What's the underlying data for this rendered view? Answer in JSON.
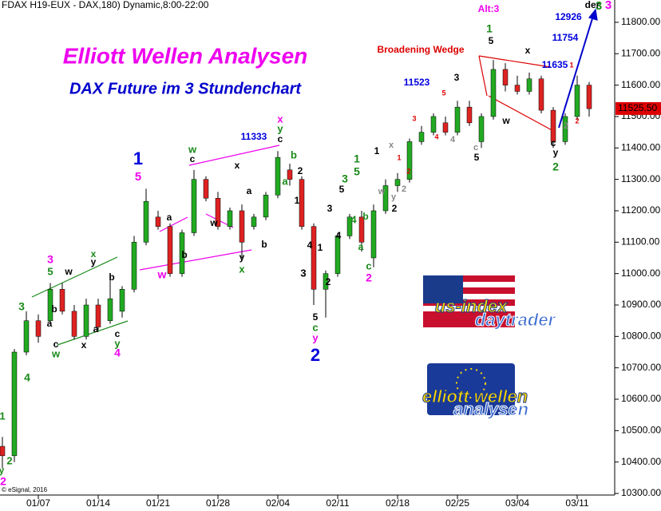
{
  "chart_data": {
    "type": "candlestick",
    "header": "FDAX H19-EUX - DAX,180) Dynamic,8:00-22:00",
    "copyright": "© eSignal, 2016",
    "title": "Elliott Wellen Analysen",
    "subtitle": "DAX Future im 3 Stundenchart",
    "categories": [
      null,
      null,
      null,
      "01/07",
      null,
      null,
      null,
      null,
      "01/14",
      null,
      null,
      null,
      null,
      "01/21",
      null,
      null,
      null,
      null,
      "01/28",
      null,
      null,
      null,
      null,
      "02/04",
      null,
      null,
      null,
      null,
      "02/11",
      null,
      null,
      null,
      null,
      "02/18",
      null,
      null,
      null,
      null,
      "02/25",
      null,
      null,
      null,
      null,
      "03/04",
      null,
      null,
      null,
      null,
      "03/11",
      null
    ],
    "open": [
      10450,
      10420,
      10750,
      10850,
      10850,
      10950,
      10880,
      10800,
      10900,
      10850,
      10880,
      10950,
      11100,
      11180,
      11150,
      11000,
      11130,
      11300,
      11240,
      11150,
      11200,
      11150,
      11180,
      11250,
      11330,
      11300,
      11150,
      10950,
      11000,
      11120,
      11180,
      11050,
      11200,
      11280,
      11300,
      11420,
      11450,
      11480,
      11450,
      11530,
      11420,
      11500,
      11650,
      11600,
      11580,
      11620,
      11520,
      11420,
      11500,
      11600
    ],
    "high": [
      10480,
      10760,
      10880,
      10870,
      10970,
      10970,
      10900,
      10920,
      10920,
      10990,
      10960,
      11120,
      11270,
      11200,
      11160,
      11140,
      11330,
      11310,
      11260,
      11210,
      11220,
      11190,
      11260,
      11390,
      11350,
      11310,
      11160,
      11010,
      11130,
      11190,
      11200,
      11220,
      11300,
      11320,
      11430,
      11470,
      11510,
      11500,
      11550,
      11550,
      11510,
      11680,
      11670,
      11630,
      11640,
      11630,
      11530,
      11510,
      11630,
      11610
    ],
    "low": [
      10380,
      10400,
      10740,
      10780,
      10840,
      10870,
      10790,
      10790,
      10820,
      10840,
      10860,
      10940,
      11090,
      11140,
      10990,
      10990,
      11120,
      11230,
      11140,
      11140,
      11050,
      11140,
      11170,
      11240,
      11280,
      11140,
      10900,
      10860,
      10990,
      11110,
      11070,
      11020,
      11190,
      11260,
      11290,
      11410,
      11440,
      11440,
      11440,
      11470,
      11400,
      11490,
      11580,
      11570,
      11570,
      11510,
      11400,
      11410,
      11490,
      11500
    ],
    "close": [
      10420,
      10750,
      10850,
      10800,
      10950,
      10880,
      10800,
      10900,
      10830,
      10920,
      10950,
      11100,
      11230,
      11150,
      11000,
      11130,
      11300,
      11240,
      11150,
      11200,
      11100,
      11180,
      11250,
      11370,
      11300,
      11150,
      10950,
      11000,
      11120,
      11180,
      11100,
      11200,
      11280,
      11300,
      11420,
      11450,
      11500,
      11450,
      11530,
      11480,
      11500,
      11650,
      11600,
      11580,
      11620,
      11520,
      11420,
      11500,
      11600,
      11525
    ],
    "up_color": "#22aa22",
    "down_color": "#dd2222",
    "ylim": [
      10295,
      11871
    ],
    "yticks": [
      {
        "value": 10300,
        "label": "10300.00"
      },
      {
        "value": 10400,
        "label": "10400.00"
      },
      {
        "value": 10500,
        "label": "10500.00"
      },
      {
        "value": 10600,
        "label": "10600.00"
      },
      {
        "value": 10700,
        "label": "10700.00"
      },
      {
        "value": 10800,
        "label": "10800.00"
      },
      {
        "value": 10900,
        "label": "10900.00"
      },
      {
        "value": 11000,
        "label": "11000.00"
      },
      {
        "value": 11100,
        "label": "11100.00"
      },
      {
        "value": 11200,
        "label": "11200.00"
      },
      {
        "value": 11300,
        "label": "11300.00"
      },
      {
        "value": 11400,
        "label": "11400.00"
      },
      {
        "value": 11500,
        "label": "11500.00"
      },
      {
        "value": 11600,
        "label": "11600.00"
      },
      {
        "value": 11700,
        "label": "11700.00"
      },
      {
        "value": 11800,
        "label": "11800.00"
      }
    ],
    "last_price": {
      "value": 11525.5,
      "label": "11525.50"
    },
    "logos": [
      "us-index",
      "daytrader",
      "elliott wellen",
      "analysen"
    ],
    "annotations": [
      {
        "text": "1",
        "color": "#0000dd"
      },
      {
        "text": "5",
        "color": "#ee00ee"
      },
      {
        "text": "2",
        "color": "#0000dd"
      },
      {
        "text": "5",
        "color": "#000"
      },
      {
        "text": "c",
        "color": "#1a8a1a"
      },
      {
        "text": "y",
        "color": "#ee00ee"
      },
      {
        "text": "1",
        "color": "#1a8a1a"
      },
      {
        "text": "5",
        "color": "#000"
      },
      {
        "text": "Alt:3",
        "color": "#ee00ee"
      },
      {
        "text": "der",
        "color": "#000"
      },
      {
        "text": "3",
        "color": "#1a8a1a"
      },
      {
        "text": "3",
        "color": "#ee00ee"
      },
      {
        "text": "Broadening Wedge",
        "color": "#dd0000"
      },
      {
        "text": "11333",
        "color": "#0000dd"
      },
      {
        "text": "11523",
        "color": "#0000dd"
      },
      {
        "text": "11635",
        "color": "#0000dd"
      },
      {
        "text": "11754",
        "color": "#0000dd"
      },
      {
        "text": "12926",
        "color": "#0000dd"
      },
      {
        "text": "x",
        "color": "#ee00ee"
      },
      {
        "text": "y",
        "color": "#1a8a1a"
      },
      {
        "text": "c",
        "color": "#000"
      },
      {
        "text": "w",
        "color": "#1a8a1a"
      },
      {
        "text": "c",
        "color": "#000"
      },
      {
        "text": "x",
        "color": "#000"
      },
      {
        "text": "a",
        "color": "#000"
      },
      {
        "text": "w",
        "color": "#000"
      },
      {
        "text": "b",
        "color": "#000"
      },
      {
        "text": "y",
        "color": "#000"
      },
      {
        "text": "x",
        "color": "#1a8a1a"
      },
      {
        "text": "b",
        "color": "#1a8a1a"
      },
      {
        "text": "2",
        "color": "#000"
      },
      {
        "text": "a",
        "color": "#1a8a1a"
      },
      {
        "text": "1",
        "color": "#000"
      },
      {
        "text": "w",
        "color": "#ee00ee"
      },
      {
        "text": "b",
        "color": "#000"
      },
      {
        "text": "a",
        "color": "#000"
      },
      {
        "text": "3",
        "color": "#ee00ee"
      },
      {
        "text": "5",
        "color": "#1a8a1a"
      },
      {
        "text": "w",
        "color": "#000"
      },
      {
        "text": "b",
        "color": "#000"
      },
      {
        "text": "a",
        "color": "#000"
      },
      {
        "text": "c",
        "color": "#000"
      },
      {
        "text": "w",
        "color": "#1a8a1a"
      },
      {
        "text": "x",
        "color": "#000"
      },
      {
        "text": "a",
        "color": "#000"
      },
      {
        "text": "x",
        "color": "#1a8a1a"
      },
      {
        "text": "y",
        "color": "#000"
      },
      {
        "text": "b",
        "color": "#000"
      },
      {
        "text": "c",
        "color": "#000"
      },
      {
        "text": "y",
        "color": "#1a8a1a"
      },
      {
        "text": "4",
        "color": "#ee00ee"
      },
      {
        "text": "3",
        "color": "#1a8a1a"
      },
      {
        "text": "4",
        "color": "#1a8a1a"
      },
      {
        "text": "1",
        "color": "#1a8a1a"
      },
      {
        "text": "2",
        "color": "#1a8a1a"
      },
      {
        "text": "y",
        "color": "#1a8a1a"
      },
      {
        "text": "2",
        "color": "#ee00ee"
      },
      {
        "text": "3",
        "color": "#000"
      },
      {
        "text": "4",
        "color": "#000"
      },
      {
        "text": "1",
        "color": "#000"
      },
      {
        "text": "2",
        "color": "#000"
      },
      {
        "text": "3",
        "color": "#000"
      },
      {
        "text": "4",
        "color": "#000"
      },
      {
        "text": "5",
        "color": "#000"
      },
      {
        "text": "3",
        "color": "#1a8a1a"
      },
      {
        "text": "5",
        "color": "#1a8a1a"
      },
      {
        "text": "1",
        "color": "#1a8a1a"
      },
      {
        "text": "4",
        "color": "#1a8a1a"
      },
      {
        "text": "b",
        "color": "#1a8a1a"
      },
      {
        "text": "a",
        "color": "#1a8a1a"
      },
      {
        "text": "c",
        "color": "#1a8a1a"
      },
      {
        "text": "2",
        "color": "#ee00ee"
      },
      {
        "text": "1",
        "color": "#000"
      },
      {
        "text": "2",
        "color": "#000"
      },
      {
        "text": "w",
        "color": "#888"
      },
      {
        "text": "y",
        "color": "#888"
      },
      {
        "text": "x",
        "color": "#888"
      },
      {
        "text": "2",
        "color": "#888"
      },
      {
        "text": "1",
        "color": "#dd0000"
      },
      {
        "text": "2",
        "color": "#dd0000"
      },
      {
        "text": "3",
        "color": "#dd0000"
      },
      {
        "text": "4",
        "color": "#dd0000"
      },
      {
        "text": "3",
        "color": "#000"
      },
      {
        "text": "5",
        "color": "#dd0000"
      },
      {
        "text": "4",
        "color": "#888"
      },
      {
        "text": "5",
        "color": "#000"
      },
      {
        "text": "c",
        "color": "#888"
      },
      {
        "text": "2",
        "color": "#1a8a1a"
      },
      {
        "text": "y",
        "color": "#000"
      },
      {
        "text": "c",
        "color": "#000"
      },
      {
        "text": "w",
        "color": "#000"
      },
      {
        "text": "x",
        "color": "#000"
      },
      {
        "text": "1",
        "color": "#dd0000"
      },
      {
        "text": "2",
        "color": "#dd0000"
      },
      {
        "text": "2",
        "color": "#888"
      }
    ]
  }
}
